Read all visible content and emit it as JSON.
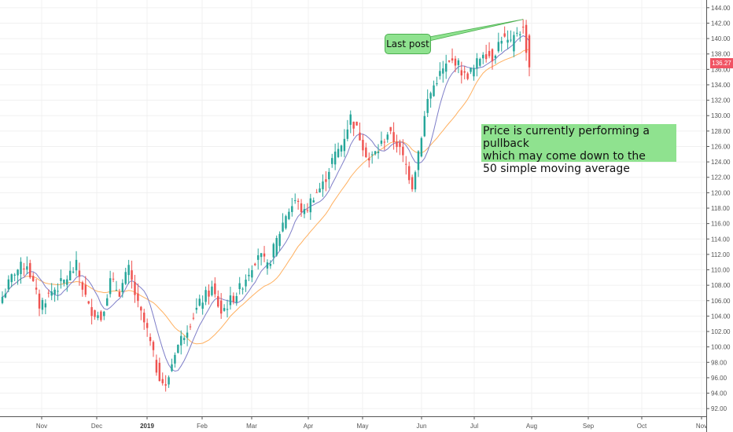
{
  "chart_data": {
    "type": "candlestick",
    "title": "",
    "ylim": [
      91,
      145
    ],
    "y_ticks": [
      "144.00",
      "142.00",
      "140.00",
      "138.00",
      "136.00",
      "134.00",
      "132.00",
      "130.00",
      "128.00",
      "126.00",
      "124.00",
      "122.00",
      "120.00",
      "118.00",
      "116.00",
      "114.00",
      "112.00",
      "110.00",
      "108.00",
      "106.00",
      "104.00",
      "102.00",
      "100.00",
      "98.00",
      "96.00",
      "94.00",
      "92.00"
    ],
    "x_ticks": [
      {
        "label": "Nov",
        "bold": false
      },
      {
        "label": "Dec",
        "bold": false
      },
      {
        "label": "2019",
        "bold": true
      },
      {
        "label": "Feb",
        "bold": false
      },
      {
        "label": "Mar",
        "bold": false
      },
      {
        "label": "Apr",
        "bold": false
      },
      {
        "label": "May",
        "bold": false
      },
      {
        "label": "Jun",
        "bold": false
      },
      {
        "label": "Jul",
        "bold": false
      },
      {
        "label": "Aug",
        "bold": false
      },
      {
        "label": "Sep",
        "bold": false
      },
      {
        "label": "Oct",
        "bold": false
      },
      {
        "label": "Nov",
        "bold": false
      }
    ],
    "last_price": "136.27",
    "colors": {
      "up": "#26a69a",
      "down": "#ef5350",
      "ma_short": "#7e7ec8",
      "ma_long": "#ffb060",
      "grid": "#f0f0f0",
      "annotation": "#8fe28f"
    },
    "close_anchors": [
      [
        0,
        106.5
      ],
      [
        4,
        109.8
      ],
      [
        8,
        110.8
      ],
      [
        12,
        105.4
      ],
      [
        16,
        107.2
      ],
      [
        20,
        108.5
      ],
      [
        24,
        110.5
      ],
      [
        28,
        105.1
      ],
      [
        32,
        103.8
      ],
      [
        35,
        108.5
      ],
      [
        38,
        107.2
      ],
      [
        41,
        110.0
      ],
      [
        44,
        105.3
      ],
      [
        47,
        102.0
      ],
      [
        50,
        97.2
      ],
      [
        53,
        94.6
      ],
      [
        56,
        99.5
      ],
      [
        59,
        101.8
      ],
      [
        62,
        104.2
      ],
      [
        65,
        106.2
      ],
      [
        68,
        107.5
      ],
      [
        71,
        104.5
      ],
      [
        74,
        106.0
      ],
      [
        77,
        107.5
      ],
      [
        80,
        109.8
      ],
      [
        83,
        112.2
      ],
      [
        86,
        110.3
      ],
      [
        89,
        113.8
      ],
      [
        92,
        117.2
      ],
      [
        95,
        119.0
      ],
      [
        98,
        117.3
      ],
      [
        101,
        119.7
      ],
      [
        104,
        121.0
      ],
      [
        107,
        124.2
      ],
      [
        110,
        126.2
      ],
      [
        113,
        129.8
      ],
      [
        116,
        127.3
      ],
      [
        119,
        124.2
      ],
      [
        122,
        125.6
      ],
      [
        125,
        127.8
      ],
      [
        128,
        126.4
      ],
      [
        131,
        123.5
      ],
      [
        133,
        121.0
      ],
      [
        135,
        125.4
      ],
      [
        138,
        132.0
      ],
      [
        141,
        134.8
      ],
      [
        144,
        136.4
      ],
      [
        147,
        137.2
      ],
      [
        150,
        135.1
      ],
      [
        153,
        136.0
      ],
      [
        156,
        138.4
      ],
      [
        159,
        137.6
      ],
      [
        162,
        140.2
      ],
      [
        165,
        139.1
      ],
      [
        167,
        141.0
      ],
      [
        169,
        141.2
      ],
      [
        171,
        136.27
      ]
    ],
    "series": [
      {
        "name": "",
        "type": "moving-average",
        "color": "#7e7ec8"
      },
      {
        "name": "",
        "type": "moving-average",
        "color": "#ffb060"
      }
    ],
    "annotations": [
      {
        "text": "Price is currently performing a pullback\nwhich may come down to the\n50 simple moving average"
      },
      {
        "text": "Last post"
      }
    ]
  }
}
